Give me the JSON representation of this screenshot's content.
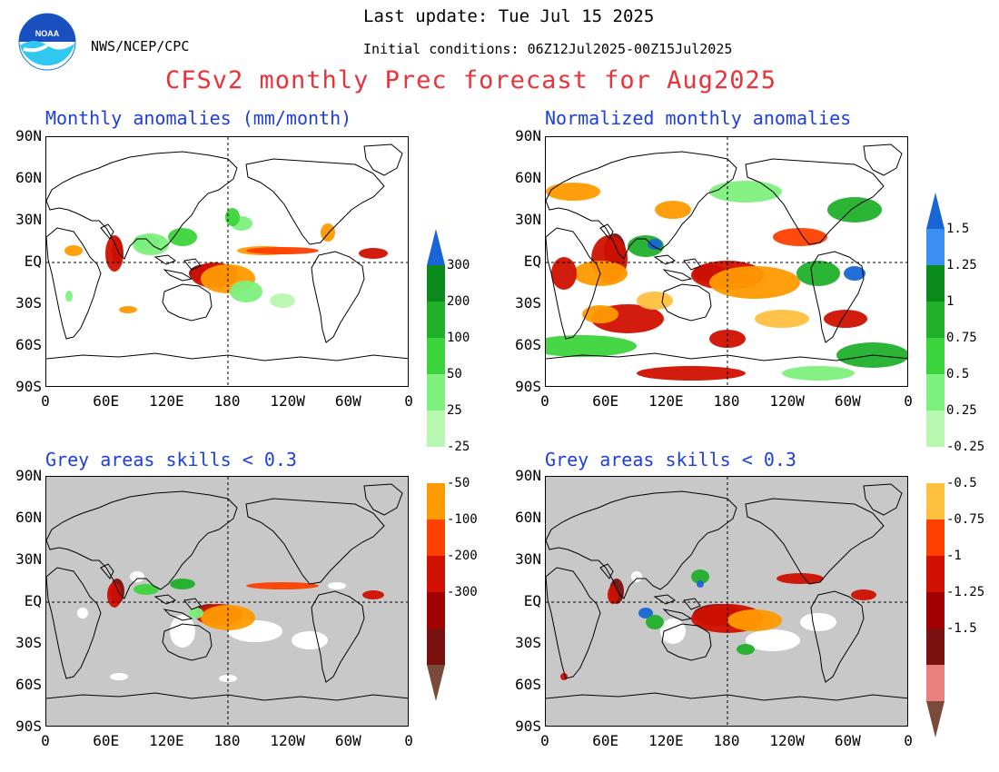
{
  "header": {
    "agency": "NWS/NCEP/CPC",
    "last_update": "Last update: Tue Jul 15 2025",
    "initial_conditions": "Initial conditions: 06Z12Jul2025-00Z15Jul2025",
    "title": "CFSv2 monthly Prec forecast for Aug2025",
    "logo_text": "NOAA"
  },
  "panels": {
    "top_left": {
      "title": "Monthly anomalies (mm/month)"
    },
    "top_right": {
      "title": "Normalized monthly anomalies"
    },
    "bottom_left": {
      "title": "Grey areas skills < 0.3"
    },
    "bottom_right": {
      "title": "Grey areas skills < 0.3"
    }
  },
  "axes": {
    "lat_ticks": [
      "90N",
      "60N",
      "30N",
      "EQ",
      "30S",
      "60S",
      "90S"
    ],
    "lon_ticks": [
      "0",
      "60E",
      "120E",
      "180",
      "120W",
      "60W",
      "0"
    ]
  },
  "colorbars": {
    "left": {
      "positive_labels": [
        "300",
        "200",
        "100",
        "50",
        "25"
      ],
      "negative_labels": [
        "-25",
        "-50",
        "-100",
        "-200",
        "-300"
      ]
    },
    "right": {
      "positive_labels": [
        "1.5",
        "1.25",
        "1",
        "0.75",
        "0.5",
        "0.25"
      ],
      "negative_labels": [
        "-0.25",
        "-0.5",
        "-0.75",
        "-1",
        "-1.25",
        "-1.5"
      ]
    }
  },
  "colors": {
    "dark_green": "#0a8a1a",
    "green": "#20b02a",
    "mid_green": "#3cd43c",
    "light_green": "#7ef07e",
    "pale_green": "#b8f8b0",
    "light_blue": "#3c8ef0",
    "blue": "#1866d6",
    "orange_yellow": "#ffc040",
    "orange": "#ff9a00",
    "red_orange": "#ff4000",
    "red": "#d01000",
    "dark_red": "#a00000",
    "maroon": "#7a1010",
    "pink": "#e88080",
    "brown": "#7a4a3a",
    "grey": "#c8c8c8",
    "title_red": "#e8333a",
    "title_blue": "#1d3ee0"
  }
}
